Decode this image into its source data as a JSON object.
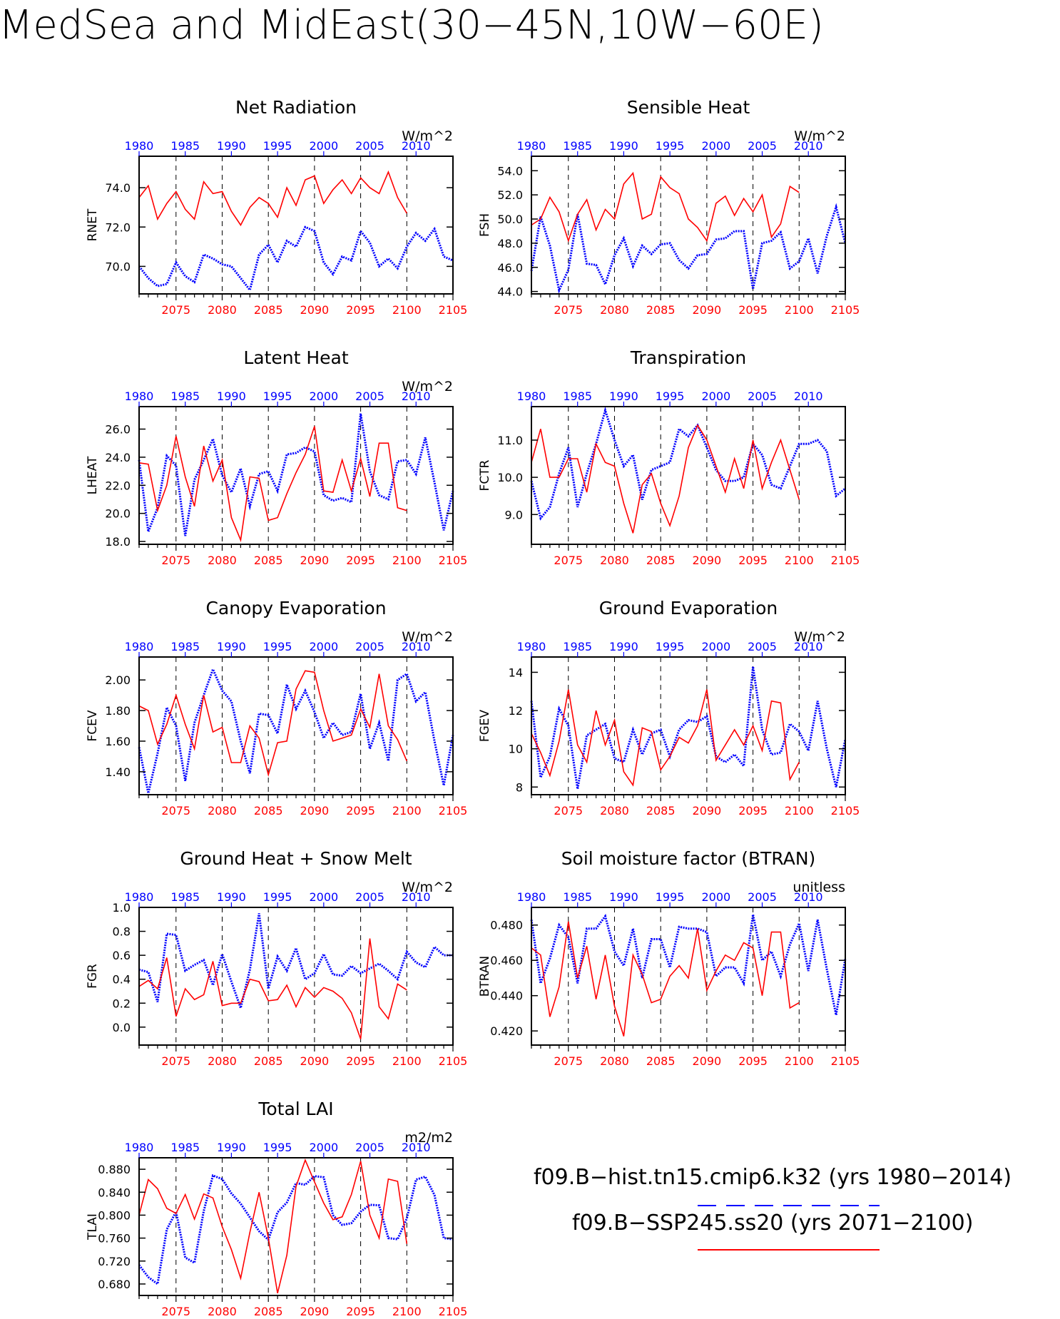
{
  "figure_title": "MedSea and MidEast(30−45N,10W−60E)",
  "colors": {
    "hist": "#0000ff",
    "future": "#ff0000"
  },
  "legend": {
    "hist_label": "f09.B−hist.tn15.cmip6.k32 (yrs 1980−2014)",
    "future_label": "f09.B−SSP245.ss20 (yrs 2071−2100)"
  },
  "chart_data": [
    {
      "type": "line",
      "title": "Net Radiation",
      "ylabel": "RNET",
      "units": "W/m^2",
      "ylim": [
        68.6,
        75.6
      ],
      "yticks": [
        "70.0",
        "72.0",
        "74.0"
      ],
      "x_top": [
        "1980",
        "1985",
        "1990",
        "1995",
        "2000",
        "2005",
        "2010"
      ],
      "x_bottom": [
        "2075",
        "2080",
        "2085",
        "2090",
        "2095",
        "2100",
        "2105"
      ],
      "series": [
        {
          "key": "hist",
          "x_start": 1980,
          "values": [
            70.0,
            69.4,
            69.0,
            69.1,
            70.2,
            69.5,
            69.2,
            70.6,
            70.4,
            70.1,
            70.0,
            69.4,
            68.8,
            70.6,
            71.1,
            70.2,
            71.3,
            71.0,
            72.0,
            71.8,
            70.2,
            69.6,
            70.5,
            70.3,
            71.8,
            71.2,
            70.0,
            70.4,
            69.9,
            71.0,
            71.7,
            71.3,
            71.9,
            70.5,
            70.3
          ]
        },
        {
          "key": "future",
          "x_start": 2071,
          "values": [
            73.5,
            74.1,
            72.4,
            73.2,
            73.8,
            72.9,
            72.4,
            74.3,
            73.7,
            73.8,
            72.8,
            72.1,
            73.0,
            73.5,
            73.2,
            72.5,
            74.0,
            73.1,
            74.4,
            74.6,
            73.2,
            73.9,
            74.4,
            73.7,
            74.5,
            74.0,
            73.7,
            74.8,
            73.5,
            72.7
          ]
        }
      ]
    },
    {
      "type": "line",
      "title": "Sensible Heat",
      "ylabel": "FSH",
      "units": "W/m^2",
      "ylim": [
        43.8,
        55.2
      ],
      "yticks": [
        "44.0",
        "46.0",
        "48.0",
        "50.0",
        "52.0",
        "54.0"
      ],
      "x_top": [
        "1980",
        "1985",
        "1990",
        "1995",
        "2000",
        "2005",
        "2010"
      ],
      "x_bottom": [
        "2075",
        "2080",
        "2085",
        "2090",
        "2095",
        "2100",
        "2105"
      ],
      "series": [
        {
          "key": "hist",
          "x_start": 1980,
          "values": [
            45.7,
            50.2,
            47.8,
            44.1,
            45.8,
            50.4,
            46.3,
            46.2,
            44.6,
            47.0,
            48.4,
            46.1,
            47.8,
            47.1,
            47.9,
            48.0,
            46.6,
            45.9,
            47.0,
            47.1,
            48.3,
            48.4,
            49.0,
            49.0,
            44.2,
            48.0,
            48.2,
            48.9,
            45.9,
            46.5,
            48.4,
            45.5,
            48.6,
            51.0,
            48.0
          ]
        },
        {
          "key": "future",
          "x_start": 2071,
          "values": [
            49.5,
            50.0,
            51.8,
            50.6,
            48.2,
            50.4,
            51.6,
            49.1,
            50.8,
            50.0,
            52.9,
            53.8,
            50.0,
            50.4,
            53.5,
            52.6,
            52.1,
            50.0,
            49.3,
            48.2,
            51.3,
            51.9,
            50.3,
            51.7,
            50.6,
            52.0,
            48.5,
            49.6,
            52.7,
            52.2
          ]
        }
      ]
    },
    {
      "type": "line",
      "title": "Latent Heat",
      "ylabel": "LHEAT",
      "units": "W/m^2",
      "ylim": [
        17.8,
        27.6
      ],
      "yticks": [
        "18.0",
        "20.0",
        "22.0",
        "24.0",
        "26.0"
      ],
      "x_top": [
        "1980",
        "1985",
        "1990",
        "1995",
        "2000",
        "2005",
        "2010"
      ],
      "x_bottom": [
        "2075",
        "2080",
        "2085",
        "2090",
        "2095",
        "2100",
        "2105"
      ],
      "series": [
        {
          "key": "hist",
          "x_start": 1980,
          "values": [
            23.8,
            18.7,
            20.4,
            24.1,
            23.4,
            18.4,
            22.4,
            23.8,
            25.3,
            22.7,
            21.5,
            23.2,
            20.5,
            22.8,
            23.0,
            21.6,
            24.2,
            24.3,
            24.7,
            24.4,
            21.3,
            20.9,
            21.1,
            20.8,
            27.1,
            23.0,
            21.3,
            21.0,
            23.7,
            23.8,
            22.8,
            25.4,
            22.2,
            18.8,
            21.6
          ]
        },
        {
          "key": "future",
          "x_start": 2071,
          "values": [
            23.6,
            23.5,
            20.2,
            22.0,
            25.5,
            22.6,
            20.5,
            24.8,
            22.3,
            23.8,
            19.7,
            18.1,
            22.6,
            22.5,
            19.5,
            19.7,
            21.4,
            22.9,
            24.2,
            26.2,
            21.6,
            21.5,
            23.8,
            21.6,
            23.9,
            21.2,
            25.0,
            25.0,
            20.4,
            20.2
          ]
        }
      ]
    },
    {
      "type": "line",
      "title": "Transpiration",
      "ylabel": "FCTR",
      "units": "",
      "ylim": [
        8.2,
        11.9
      ],
      "yticks": [
        "9.0",
        "10.0",
        "11.0"
      ],
      "x_top": [
        "1980",
        "1985",
        "1990",
        "1995",
        "2000",
        "2005",
        "2010"
      ],
      "x_bottom": [
        "2075",
        "2080",
        "2085",
        "2090",
        "2095",
        "2100",
        "2105"
      ],
      "series": [
        {
          "key": "hist",
          "x_start": 1980,
          "values": [
            9.9,
            8.9,
            9.2,
            10.1,
            10.8,
            9.2,
            10.1,
            10.9,
            11.8,
            11.0,
            10.3,
            10.6,
            9.4,
            10.2,
            10.3,
            10.4,
            11.3,
            11.1,
            11.4,
            10.8,
            10.2,
            9.9,
            9.9,
            10.0,
            10.9,
            10.6,
            9.8,
            9.7,
            10.3,
            10.9,
            10.9,
            11.0,
            10.7,
            9.5,
            9.7
          ]
        },
        {
          "key": "future",
          "x_start": 2071,
          "values": [
            10.4,
            11.3,
            10.0,
            10.0,
            10.5,
            10.5,
            9.6,
            10.9,
            10.4,
            10.3,
            9.3,
            8.5,
            9.8,
            10.1,
            9.3,
            8.7,
            9.5,
            10.8,
            11.4,
            11.0,
            10.3,
            9.6,
            10.5,
            9.7,
            11.0,
            9.7,
            10.4,
            11.0,
            10.2,
            9.4
          ]
        }
      ]
    },
    {
      "type": "line",
      "title": "Canopy Evaporation",
      "ylabel": "FCEV",
      "units": "W/m^2",
      "ylim": [
        1.25,
        2.15
      ],
      "yticks": [
        "1.40",
        "1.60",
        "1.80",
        "2.00"
      ],
      "x_top": [
        "1980",
        "1985",
        "1990",
        "1995",
        "2000",
        "2005",
        "2010"
      ],
      "x_bottom": [
        "2075",
        "2080",
        "2085",
        "2090",
        "2095",
        "2100",
        "2105"
      ],
      "series": [
        {
          "key": "hist",
          "x_start": 1980,
          "values": [
            1.56,
            1.26,
            1.52,
            1.82,
            1.7,
            1.34,
            1.72,
            1.9,
            2.07,
            1.93,
            1.86,
            1.6,
            1.39,
            1.78,
            1.77,
            1.65,
            1.97,
            1.81,
            1.93,
            1.79,
            1.62,
            1.72,
            1.64,
            1.66,
            1.91,
            1.55,
            1.72,
            1.47,
            2.0,
            2.04,
            1.86,
            1.92,
            1.6,
            1.31,
            1.64
          ]
        },
        {
          "key": "future",
          "x_start": 2071,
          "values": [
            1.83,
            1.8,
            1.58,
            1.71,
            1.9,
            1.71,
            1.55,
            1.9,
            1.66,
            1.69,
            1.46,
            1.46,
            1.7,
            1.62,
            1.38,
            1.59,
            1.6,
            1.94,
            2.06,
            2.05,
            1.8,
            1.6,
            1.62,
            1.64,
            1.81,
            1.69,
            2.04,
            1.7,
            1.61,
            1.47
          ]
        }
      ]
    },
    {
      "type": "line",
      "title": "Ground Evaporation",
      "ylabel": "FGEV",
      "units": "W/m^2",
      "ylim": [
        7.6,
        14.8
      ],
      "yticks": [
        "8",
        "10",
        "12",
        "14"
      ],
      "x_top": [
        "1980",
        "1985",
        "1990",
        "1995",
        "2000",
        "2005",
        "2010"
      ],
      "x_bottom": [
        "2075",
        "2080",
        "2085",
        "2090",
        "2095",
        "2100",
        "2105"
      ],
      "series": [
        {
          "key": "hist",
          "x_start": 1980,
          "values": [
            12.5,
            8.5,
            9.6,
            12.1,
            11.2,
            7.9,
            10.7,
            11.0,
            11.3,
            9.5,
            9.3,
            11.0,
            9.7,
            10.8,
            11.0,
            9.6,
            11.0,
            11.5,
            11.4,
            11.7,
            9.6,
            9.3,
            9.7,
            9.1,
            14.3,
            11.0,
            9.7,
            9.8,
            11.3,
            10.9,
            9.9,
            12.5,
            10.0,
            8.0,
            10.5
          ]
        },
        {
          "key": "future",
          "x_start": 2071,
          "values": [
            10.8,
            9.8,
            8.6,
            10.4,
            13.1,
            10.2,
            9.3,
            12.0,
            10.2,
            11.5,
            8.8,
            8.1,
            11.1,
            10.9,
            8.9,
            9.6,
            10.6,
            10.3,
            11.2,
            13.1,
            9.4,
            10.2,
            11.0,
            10.2,
            11.2,
            9.9,
            12.5,
            12.4,
            8.4,
            9.3
          ]
        }
      ]
    },
    {
      "type": "line",
      "title": "Ground Heat + Snow Melt",
      "ylabel": "FGR",
      "units": "W/m^2",
      "ylim": [
        -0.15,
        1.0
      ],
      "yticks": [
        "0.0",
        "0.2",
        "0.4",
        "0.6",
        "0.8",
        "1.0"
      ],
      "x_top": [
        "1980",
        "1985",
        "1990",
        "1995",
        "2000",
        "2005",
        "2010"
      ],
      "x_bottom": [
        "2075",
        "2080",
        "2085",
        "2090",
        "2095",
        "2100",
        "2105"
      ],
      "series": [
        {
          "key": "hist",
          "x_start": 1980,
          "values": [
            0.48,
            0.46,
            0.21,
            0.78,
            0.77,
            0.47,
            0.52,
            0.56,
            0.35,
            0.61,
            0.38,
            0.16,
            0.48,
            0.95,
            0.32,
            0.59,
            0.47,
            0.66,
            0.4,
            0.45,
            0.61,
            0.44,
            0.43,
            0.51,
            0.45,
            0.49,
            0.53,
            0.47,
            0.4,
            0.63,
            0.54,
            0.5,
            0.67,
            0.6,
            0.6
          ]
        },
        {
          "key": "future",
          "x_start": 2071,
          "values": [
            0.34,
            0.39,
            0.32,
            0.58,
            0.09,
            0.32,
            0.23,
            0.27,
            0.55,
            0.18,
            0.2,
            0.2,
            0.4,
            0.38,
            0.22,
            0.23,
            0.35,
            0.17,
            0.33,
            0.25,
            0.33,
            0.3,
            0.24,
            0.12,
            -0.1,
            0.74,
            0.17,
            0.07,
            0.36,
            0.31
          ]
        }
      ]
    },
    {
      "type": "line",
      "title": "Soil moisture factor (BTRAN)",
      "ylabel": "BTRAN",
      "units": "unitless",
      "ylim": [
        0.412,
        0.49
      ],
      "yticks": [
        "0.420",
        "0.440",
        "0.460",
        "0.480"
      ],
      "x_top": [
        "1980",
        "1985",
        "1990",
        "1995",
        "2000",
        "2005",
        "2010"
      ],
      "x_bottom": [
        "2075",
        "2080",
        "2085",
        "2090",
        "2095",
        "2100",
        "2105"
      ],
      "series": [
        {
          "key": "hist",
          "x_start": 1980,
          "values": [
            0.483,
            0.447,
            0.461,
            0.48,
            0.473,
            0.447,
            0.478,
            0.478,
            0.485,
            0.465,
            0.457,
            0.478,
            0.45,
            0.472,
            0.472,
            0.456,
            0.479,
            0.478,
            0.478,
            0.476,
            0.451,
            0.456,
            0.456,
            0.447,
            0.486,
            0.46,
            0.465,
            0.451,
            0.469,
            0.481,
            0.454,
            0.483,
            0.455,
            0.429,
            0.461
          ]
        },
        {
          "key": "future",
          "x_start": 2071,
          "values": [
            0.467,
            0.463,
            0.428,
            0.445,
            0.482,
            0.45,
            0.468,
            0.438,
            0.463,
            0.434,
            0.417,
            0.463,
            0.452,
            0.436,
            0.438,
            0.451,
            0.457,
            0.45,
            0.478,
            0.443,
            0.454,
            0.463,
            0.46,
            0.47,
            0.467,
            0.44,
            0.476,
            0.476,
            0.433,
            0.436
          ]
        }
      ]
    },
    {
      "type": "line",
      "title": "Total LAI",
      "ylabel": "TLAI",
      "units": "m2/m2",
      "ylim": [
        0.66,
        0.9
      ],
      "yticks": [
        "0.680",
        "0.720",
        "0.760",
        "0.800",
        "0.840",
        "0.880"
      ],
      "x_top": [
        "1980",
        "1985",
        "1990",
        "1995",
        "2000",
        "2005",
        "2010"
      ],
      "x_bottom": [
        "2075",
        "2080",
        "2085",
        "2090",
        "2095",
        "2100",
        "2105"
      ],
      "series": [
        {
          "key": "hist",
          "x_start": 1980,
          "values": [
            0.713,
            0.692,
            0.68,
            0.775,
            0.806,
            0.726,
            0.717,
            0.807,
            0.869,
            0.863,
            0.838,
            0.82,
            0.796,
            0.772,
            0.757,
            0.805,
            0.822,
            0.856,
            0.853,
            0.868,
            0.866,
            0.8,
            0.783,
            0.786,
            0.806,
            0.818,
            0.817,
            0.76,
            0.758,
            0.794,
            0.862,
            0.867,
            0.835,
            0.76,
            0.758
          ]
        },
        {
          "key": "future",
          "x_start": 2071,
          "values": [
            0.8,
            0.862,
            0.846,
            0.812,
            0.803,
            0.836,
            0.793,
            0.837,
            0.83,
            0.78,
            0.74,
            0.69,
            0.77,
            0.84,
            0.76,
            0.664,
            0.73,
            0.85,
            0.896,
            0.858,
            0.821,
            0.792,
            0.797,
            0.836,
            0.894,
            0.8,
            0.76,
            0.863,
            0.859,
            0.75
          ]
        }
      ]
    }
  ]
}
